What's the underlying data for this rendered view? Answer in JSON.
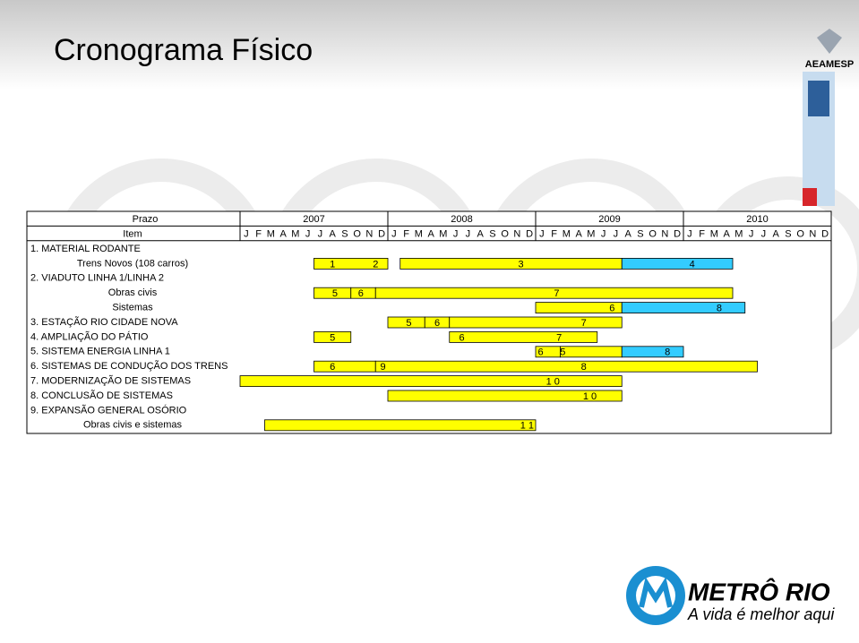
{
  "title": "Cronograma Físico",
  "logo_top": "AEAMESP",
  "logo_bottom": {
    "name": "METRÔ RIO",
    "slogan": "A vida é melhor aqui"
  },
  "table": {
    "header": {
      "prazo": "Prazo",
      "item": "Item",
      "years": [
        "2007",
        "2008",
        "2009",
        "2010"
      ],
      "months": [
        "J",
        "F",
        "M",
        "A",
        "M",
        "J",
        "J",
        "A",
        "S",
        "O",
        "N",
        "D"
      ]
    },
    "rows": [
      {
        "label": "1. MATERIAL RODANTE",
        "kind": "section"
      },
      {
        "label": "Trens Novos (108 carros)",
        "kind": "item",
        "bars": [
          {
            "start": 6,
            "end": 12,
            "color": "#ffff00"
          },
          {
            "start": 13,
            "end": 31,
            "color": "#ffff00"
          },
          {
            "start": 31,
            "end": 40,
            "color": "#33ccff"
          }
        ],
        "milestones": [
          {
            "text": "1",
            "at": 7.5
          },
          {
            "text": "2",
            "at": 11
          },
          {
            "text": "3",
            "at": 22.8
          },
          {
            "text": "4",
            "at": 36.7
          }
        ]
      },
      {
        "label": "2. VIADUTO LINHA 1/LINHA 2",
        "kind": "section"
      },
      {
        "label": "Obras civis",
        "kind": "item",
        "bars": [
          {
            "start": 6,
            "end": 9,
            "color": "#ffff00"
          },
          {
            "start": 9,
            "end": 11,
            "color": "#ffff00"
          },
          {
            "start": 11,
            "end": 40,
            "color": "#ffff00"
          }
        ],
        "milestones": [
          {
            "text": "5",
            "at": 7.7
          },
          {
            "text": "6",
            "at": 9.8
          },
          {
            "text": "7",
            "at": 25.7
          }
        ]
      },
      {
        "label": "Sistemas",
        "kind": "item",
        "bars": [
          {
            "start": 24,
            "end": 31,
            "color": "#ffff00"
          },
          {
            "start": 31,
            "end": 41,
            "color": "#33ccff"
          }
        ],
        "milestones": [
          {
            "text": "6",
            "at": 30.2
          },
          {
            "text": "8",
            "at": 38.9
          }
        ]
      },
      {
        "label": "3. ESTAÇÃO RIO CIDADE NOVA",
        "kind": "section",
        "bars": [
          {
            "start": 12,
            "end": 15,
            "color": "#ffff00"
          },
          {
            "start": 15,
            "end": 17,
            "color": "#ffff00"
          },
          {
            "start": 17,
            "end": 31,
            "color": "#ffff00"
          }
        ],
        "milestones": [
          {
            "text": "5",
            "at": 13.7
          },
          {
            "text": "6",
            "at": 16
          },
          {
            "text": "7",
            "at": 27.9
          }
        ]
      },
      {
        "label": "4. AMPLIAÇÃO DO PÁTIO",
        "kind": "section",
        "bars": [
          {
            "start": 6,
            "end": 9,
            "color": "#ffff00"
          },
          {
            "start": 17,
            "end": 29,
            "color": "#ffff00"
          }
        ],
        "milestones": [
          {
            "text": "5",
            "at": 7.5
          },
          {
            "text": "6",
            "at": 18
          },
          {
            "text": "7",
            "at": 25.9
          }
        ]
      },
      {
        "label": "5. SISTEMA ENERGIA LINHA 1",
        "kind": "section",
        "bars": [
          {
            "start": 24,
            "end": 26,
            "color": "#ffff00"
          },
          {
            "start": 26,
            "end": 31,
            "color": "#ffff00"
          },
          {
            "start": 31,
            "end": 36,
            "color": "#33ccff"
          }
        ],
        "milestones": [
          {
            "text": "6",
            "at": 24.4
          },
          {
            "text": "5",
            "at": 26.2
          },
          {
            "text": "8",
            "at": 34.7
          }
        ]
      },
      {
        "label": "6. SISTEMAS DE CONDUÇÃO DOS TRENS",
        "kind": "section",
        "bars": [
          {
            "start": 6,
            "end": 11,
            "color": "#ffff00"
          },
          {
            "start": 11,
            "end": 42,
            "color": "#ffff00"
          }
        ],
        "milestones": [
          {
            "text": "6",
            "at": 7.5
          },
          {
            "text": "9",
            "at": 11.6
          },
          {
            "text": "8",
            "at": 27.9
          }
        ]
      },
      {
        "label": "7. MODERNIZAÇÃO DE SISTEMAS",
        "kind": "section",
        "bars": [
          {
            "start": 0,
            "end": 31,
            "color": "#ffff00"
          }
        ],
        "milestones": [
          {
            "text": "1 0",
            "at": 25.4
          }
        ]
      },
      {
        "label": "8. CONCLUSÃO DE SISTEMAS",
        "kind": "section",
        "bars": [
          {
            "start": 12,
            "end": 31,
            "color": "#ffff00"
          }
        ],
        "milestones": [
          {
            "text": "1 0",
            "at": 28.4
          }
        ]
      },
      {
        "label": "9. EXPANSÃO GENERAL OSÓRIO",
        "kind": "section"
      },
      {
        "label": "Obras civis e sistemas",
        "kind": "item",
        "bars": [
          {
            "start": 2,
            "end": 24,
            "color": "#ffff00"
          }
        ],
        "milestones": [
          {
            "text": "1 1",
            "at": 23.3
          }
        ]
      }
    ]
  }
}
